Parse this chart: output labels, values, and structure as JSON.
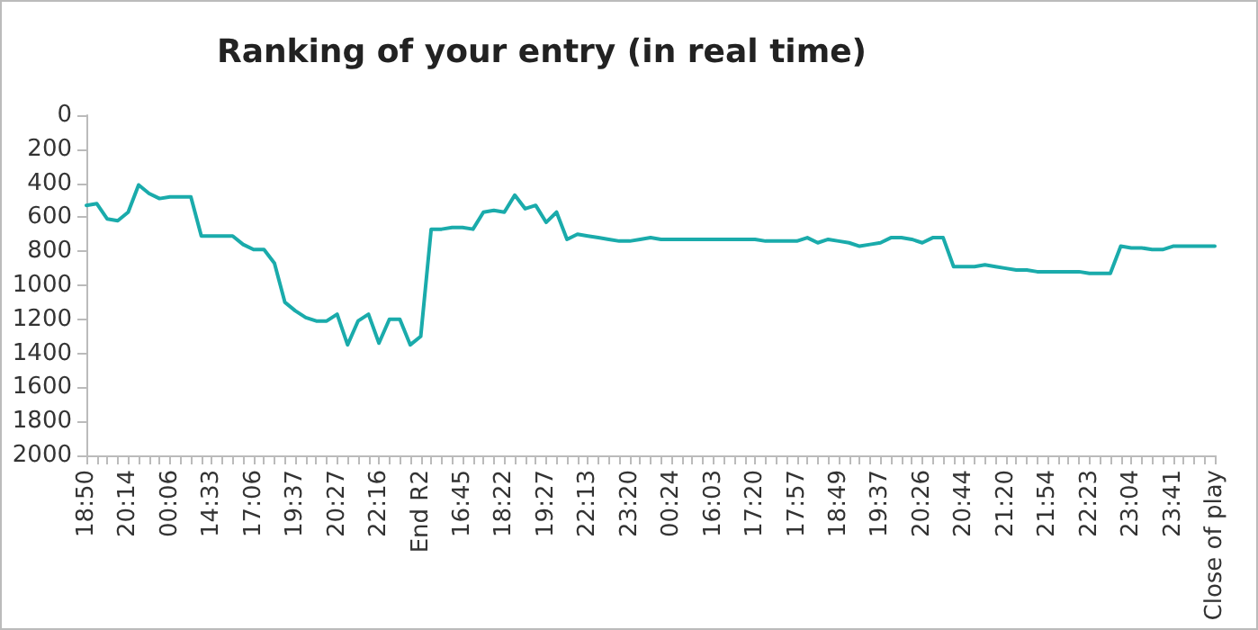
{
  "chart_data": {
    "type": "line",
    "title": "Ranking of your entry (in real time)",
    "categories": [
      "18:50",
      null,
      null,
      null,
      "20:14",
      null,
      null,
      null,
      "00:06",
      null,
      null,
      null,
      "14:33",
      null,
      null,
      null,
      "17:06",
      null,
      null,
      null,
      "19:37",
      null,
      null,
      null,
      "20:27",
      null,
      null,
      null,
      "22:16",
      null,
      null,
      null,
      "End R2",
      null,
      null,
      null,
      "16:45",
      null,
      null,
      null,
      "18:22",
      null,
      null,
      null,
      "19:27",
      null,
      null,
      null,
      "22:13",
      null,
      null,
      null,
      "23:20",
      null,
      null,
      null,
      "00:24",
      null,
      null,
      null,
      "16:03",
      null,
      null,
      null,
      "17:20",
      null,
      null,
      null,
      "17:57",
      null,
      null,
      null,
      "18:49",
      null,
      null,
      null,
      "19:37",
      null,
      null,
      null,
      "20:26",
      null,
      null,
      null,
      "20:44",
      null,
      null,
      null,
      "21:20",
      null,
      null,
      null,
      "21:54",
      null,
      null,
      null,
      "22:23",
      null,
      null,
      null,
      "23:04",
      null,
      null,
      null,
      "23:41",
      null,
      null,
      null,
      "Close of play"
    ],
    "series": [
      {
        "color": "#1aabab",
        "values": [
          530,
          520,
          610,
          620,
          570,
          410,
          460,
          490,
          480,
          480,
          480,
          710,
          710,
          710,
          710,
          760,
          790,
          790,
          870,
          1100,
          1150,
          1190,
          1210,
          1210,
          1170,
          1350,
          1210,
          1170,
          1340,
          1200,
          1200,
          1350,
          1300,
          670,
          670,
          660,
          660,
          670,
          570,
          560,
          570,
          470,
          550,
          530,
          630,
          570,
          730,
          700,
          710,
          720,
          730,
          740,
          740,
          730,
          720,
          730,
          730,
          730,
          730,
          730,
          730,
          730,
          730,
          730,
          730,
          740,
          740,
          740,
          740,
          720,
          750,
          730,
          740,
          750,
          770,
          760,
          750,
          720,
          720,
          730,
          750,
          720,
          720,
          890,
          890,
          890,
          880,
          890,
          900,
          910,
          910,
          920,
          920,
          920,
          920,
          920,
          930,
          930,
          930,
          770,
          780,
          780,
          790,
          790,
          770,
          770,
          770,
          770,
          770
        ]
      }
    ],
    "ylim": [
      2000,
      0
    ],
    "yticks": [
      0,
      200,
      400,
      600,
      800,
      1000,
      1200,
      1400,
      1600,
      1800,
      2000
    ],
    "grid": false,
    "marker": "none",
    "line_style": "solid"
  }
}
